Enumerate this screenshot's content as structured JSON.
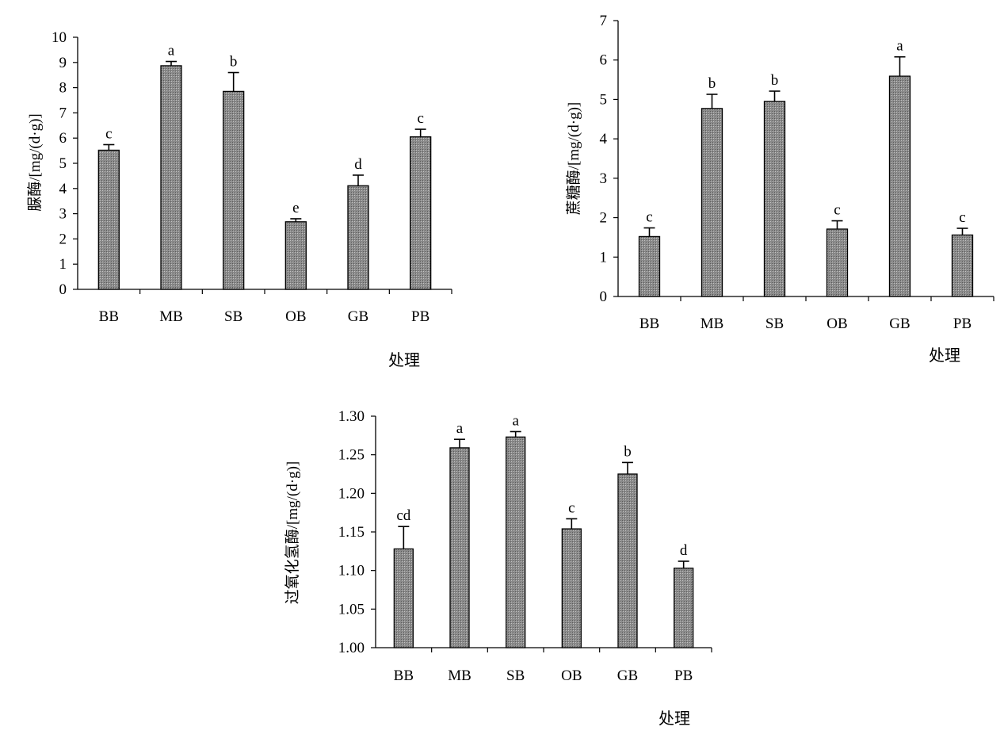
{
  "chart_data": [
    {
      "type": "bar",
      "title": "",
      "xlabel": "处理",
      "ylabel": "脲酶/[mg/(d·g)]",
      "categories": [
        "BB",
        "MB",
        "SB",
        "OB",
        "GB",
        "PB"
      ],
      "values": [
        5.52,
        8.87,
        7.85,
        2.68,
        4.11,
        6.05
      ],
      "errors": [
        0.22,
        0.17,
        0.75,
        0.12,
        0.42,
        0.3
      ],
      "letters": [
        "c",
        "a",
        "b",
        "e",
        "d",
        "c"
      ],
      "ylim": [
        0,
        10
      ],
      "yticks": [
        "0",
        "1",
        "2",
        "3",
        "4",
        "5",
        "6",
        "7",
        "8",
        "9",
        "10"
      ],
      "grid": false,
      "bar_color": "#8f8f8f"
    },
    {
      "type": "bar",
      "title": "",
      "xlabel": "处理",
      "ylabel": "蔗糖酶/[mg/(d·g)]",
      "categories": [
        "BB",
        "MB",
        "SB",
        "OB",
        "GB",
        "PB"
      ],
      "values": [
        1.52,
        4.77,
        4.95,
        1.71,
        5.59,
        1.56
      ],
      "errors": [
        0.22,
        0.36,
        0.26,
        0.21,
        0.49,
        0.17
      ],
      "letters": [
        "c",
        "b",
        "b",
        "c",
        "a",
        "c"
      ],
      "ylim": [
        0,
        7
      ],
      "yticks": [
        "0",
        "1",
        "2",
        "3",
        "4",
        "5",
        "6",
        "7"
      ],
      "grid": false,
      "bar_color": "#8f8f8f"
    },
    {
      "type": "bar",
      "title": "",
      "xlabel": "处理",
      "ylabel": "过氧化氢酶/[mg/(d·g)]",
      "categories": [
        "BB",
        "MB",
        "SB",
        "OB",
        "GB",
        "PB"
      ],
      "values": [
        1.128,
        1.259,
        1.273,
        1.154,
        1.225,
        1.103
      ],
      "errors": [
        0.029,
        0.011,
        0.007,
        0.013,
        0.015,
        0.009
      ],
      "letters": [
        "cd",
        "a",
        "a",
        "c",
        "b",
        "d"
      ],
      "ylim": [
        1.0,
        1.3
      ],
      "yticks": [
        "1.00",
        "1.05",
        "1.10",
        "1.15",
        "1.20",
        "1.25",
        "1.30"
      ],
      "grid": false,
      "bar_color": "#8f8f8f"
    }
  ]
}
